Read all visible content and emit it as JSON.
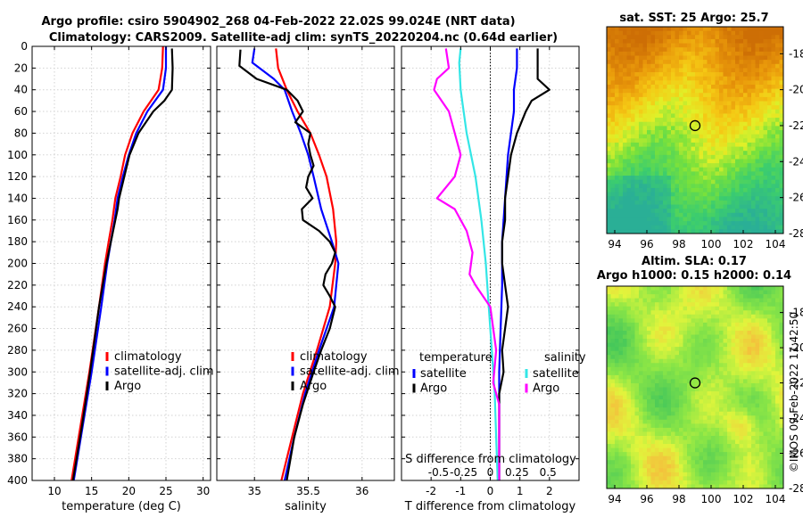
{
  "header": {
    "title_line1": "Argo profile: csiro 5904902_268 04-Feb-2022 22.02S 99.024E (NRT data)",
    "title_line2": "Climatology: CARS2009. Satellite-adj clim: synTS_20220204.nc (0.64d earlier)"
  },
  "colors": {
    "climatology": "#ff0000",
    "satellite": "#0000ff",
    "argo": "#000000",
    "sat_salinity": "#33e6e6",
    "argo_salinity": "#ff00ff"
  },
  "depth_axis": {
    "ticks": [
      0,
      20,
      40,
      60,
      80,
      100,
      120,
      140,
      160,
      180,
      200,
      220,
      240,
      260,
      280,
      300,
      320,
      340,
      360,
      380,
      400
    ],
    "ylim": [
      0,
      400
    ]
  },
  "chart_data": [
    {
      "type": "line",
      "name": "temperature",
      "xlabel": "temperature (deg C)",
      "xlim": [
        7,
        31
      ],
      "xticks": [
        10,
        15,
        20,
        25,
        30
      ],
      "ylim": [
        0,
        400
      ],
      "legend": [
        "climatology",
        "satellite-adj. clim",
        "Argo"
      ],
      "series": [
        {
          "name": "climatology",
          "color": "#ff0000",
          "depth": [
            0,
            20,
            40,
            60,
            80,
            100,
            120,
            140,
            160,
            180,
            200,
            240,
            300,
            350,
            400
          ],
          "values": [
            24.6,
            24.5,
            24.0,
            22.0,
            20.5,
            19.5,
            18.9,
            18.2,
            17.8,
            17.3,
            16.8,
            16.0,
            14.7,
            13.5,
            12.3
          ]
        },
        {
          "name": "satellite-adj. clim",
          "color": "#0000ff",
          "depth": [
            0,
            20,
            40,
            60,
            80,
            100,
            120,
            140,
            160,
            180,
            200,
            240,
            300,
            350,
            400
          ],
          "values": [
            25.0,
            25.0,
            24.6,
            22.5,
            21.0,
            20.0,
            19.2,
            18.5,
            18.1,
            17.6,
            17.1,
            16.3,
            15.0,
            13.8,
            12.6
          ]
        },
        {
          "name": "Argo",
          "color": "#000000",
          "depth": [
            2,
            20,
            40,
            50,
            60,
            80,
            100,
            120,
            140,
            150,
            160,
            180,
            200,
            240,
            300,
            350,
            400
          ],
          "values": [
            25.8,
            25.9,
            25.8,
            24.8,
            23.3,
            21.3,
            20.1,
            19.4,
            18.7,
            18.5,
            18.2,
            17.6,
            17.0,
            16.0,
            14.8,
            13.7,
            12.5
          ]
        }
      ]
    },
    {
      "type": "line",
      "name": "salinity",
      "xlabel": "salinity",
      "xlim": [
        34.65,
        36.3
      ],
      "xticks": [
        35,
        35.5,
        36
      ],
      "ylim": [
        0,
        400
      ],
      "legend": [
        "climatology",
        "satellite-adj. clim",
        "Argo"
      ],
      "series": [
        {
          "name": "climatology",
          "color": "#ff0000",
          "depth": [
            2,
            20,
            40,
            60,
            80,
            100,
            120,
            150,
            180,
            200,
            240,
            280,
            320,
            360,
            400
          ],
          "values": [
            35.2,
            35.22,
            35.3,
            35.4,
            35.52,
            35.6,
            35.67,
            35.73,
            35.76,
            35.75,
            35.7,
            35.58,
            35.45,
            35.35,
            35.25
          ]
        },
        {
          "name": "satellite-adj. clim",
          "color": "#0000ff",
          "depth": [
            2,
            15,
            30,
            40,
            60,
            80,
            100,
            120,
            150,
            180,
            200,
            220,
            240,
            280,
            320,
            360,
            400
          ],
          "values": [
            35.0,
            34.98,
            35.18,
            35.28,
            35.35,
            35.43,
            35.5,
            35.55,
            35.62,
            35.72,
            35.78,
            35.76,
            35.74,
            35.6,
            35.47,
            35.37,
            35.28
          ]
        },
        {
          "name": "Argo",
          "color": "#000000",
          "depth": [
            3,
            18,
            30,
            40,
            50,
            60,
            70,
            80,
            90,
            100,
            110,
            120,
            130,
            140,
            150,
            160,
            170,
            180,
            190,
            200,
            210,
            220,
            230,
            240,
            260,
            280,
            300,
            330,
            360,
            400
          ],
          "values": [
            34.87,
            34.86,
            35.02,
            35.3,
            35.4,
            35.45,
            35.38,
            35.52,
            35.5,
            35.52,
            35.55,
            35.5,
            35.48,
            35.54,
            35.44,
            35.45,
            35.6,
            35.7,
            35.75,
            35.72,
            35.66,
            35.64,
            35.7,
            35.75,
            35.7,
            35.62,
            35.55,
            35.45,
            35.37,
            35.3
          ]
        }
      ]
    },
    {
      "type": "line",
      "name": "difference",
      "xlabel": "T difference from climatology",
      "xlabel_top": "S difference from climatology",
      "xlim": [
        -3,
        3
      ],
      "xticks": [
        -2,
        -1,
        0,
        1,
        2
      ],
      "xtick_labels_top": [
        "-0.5",
        "-0.25",
        "0",
        "0.25",
        "0.5"
      ],
      "ylim": [
        0,
        400
      ],
      "legend_temperature_title": "temperature",
      "legend_salinity_title": "salinity",
      "legend_temperature": [
        "satellite",
        "Argo"
      ],
      "legend_salinity": [
        "satellite",
        "Argo"
      ],
      "series": [
        {
          "name": "T satellite",
          "color": "#0000ff",
          "depth": [
            2,
            20,
            40,
            60,
            80,
            100,
            140,
            180,
            220,
            260,
            300,
            360,
            400
          ],
          "values": [
            0.9,
            0.9,
            0.8,
            0.8,
            0.7,
            0.6,
            0.5,
            0.4,
            0.4,
            0.35,
            0.3,
            0.3,
            0.3
          ]
        },
        {
          "name": "T Argo",
          "color": "#000000",
          "depth": [
            2,
            20,
            30,
            40,
            50,
            60,
            80,
            100,
            120,
            140,
            160,
            180,
            200,
            220,
            240,
            260,
            280,
            300,
            320,
            360,
            400
          ],
          "values": [
            1.6,
            1.6,
            1.6,
            2.0,
            1.4,
            1.2,
            0.9,
            0.7,
            0.6,
            0.5,
            0.5,
            0.4,
            0.4,
            0.5,
            0.6,
            0.5,
            0.4,
            0.45,
            0.3,
            0.3,
            0.3
          ]
        },
        {
          "name": "S satellite",
          "color": "#33e6e6",
          "depth": [
            2,
            15,
            40,
            80,
            120,
            160,
            200,
            240,
            280,
            320,
            360,
            400
          ],
          "values": [
            -1.0,
            -1.05,
            -1.0,
            -0.8,
            -0.5,
            -0.3,
            -0.15,
            -0.05,
            0.05,
            0.15,
            0.2,
            0.25
          ]
        },
        {
          "name": "S Argo",
          "color": "#ff00ff",
          "depth": [
            2,
            20,
            30,
            40,
            60,
            80,
            100,
            120,
            140,
            150,
            170,
            190,
            210,
            220,
            240,
            280,
            310,
            330,
            360,
            400
          ],
          "values": [
            -1.5,
            -1.4,
            -1.8,
            -1.9,
            -1.4,
            -1.2,
            -1.0,
            -1.2,
            -1.8,
            -1.2,
            -0.8,
            -0.6,
            -0.7,
            -0.5,
            0.0,
            0.2,
            0.1,
            0.3,
            0.3,
            0.3
          ]
        }
      ]
    }
  ],
  "maps": [
    {
      "title": "sat. SST: 25 Argo: 25.7",
      "xticks": [
        94,
        96,
        98,
        100,
        102,
        104
      ],
      "yticks": [
        -18,
        -20,
        -22,
        -24,
        -26,
        -28
      ],
      "xlim": [
        93.5,
        104.5
      ],
      "ylim": [
        -28,
        -16.5
      ],
      "marker": {
        "lon": 99.0,
        "lat": -22.0
      },
      "kind": "sst"
    },
    {
      "title_line1": "Altim. SLA: 0.17",
      "title_line2": "Argo h1000: 0.15 h2000: 0.14",
      "xticks": [
        94,
        96,
        98,
        100,
        102,
        104
      ],
      "yticks": [
        -18,
        -20,
        -22,
        -24,
        -26,
        -28
      ],
      "xlim": [
        93.5,
        104.5
      ],
      "ylim": [
        -28,
        -16.5
      ],
      "marker": {
        "lon": 99.0,
        "lat": -22.0
      },
      "kind": "sla"
    }
  ],
  "footer_stamp": "©IMOS 09-Feb-2022 11:42:50"
}
